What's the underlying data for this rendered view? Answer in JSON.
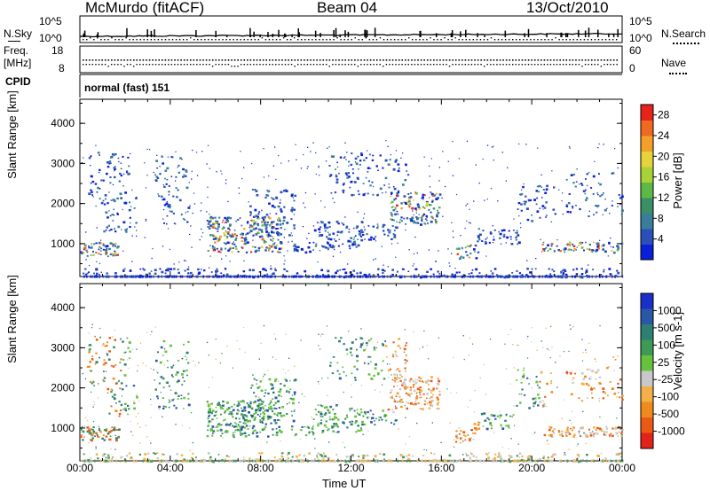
{
  "header": {
    "station": "McMurdo (fitACF)",
    "beam": "Beam 04",
    "date": "13/Oct/2010"
  },
  "top_panel": {
    "left_label": "N.Sky",
    "right_label": "N.Search",
    "left_ticks": [
      "10^5",
      "10^0"
    ],
    "right_ticks": [
      "10^5",
      "10^0"
    ]
  },
  "freq_panel": {
    "left_label_1": "Freq.",
    "left_label_2": "[MHz]",
    "right_label": "Nave",
    "left_ticks": [
      "18",
      "8"
    ],
    "right_ticks": [
      "60",
      "0"
    ]
  },
  "cpid": {
    "label": "CPID",
    "value": "normal (fast) 151"
  },
  "chart_data": [
    {
      "type": "heatmap",
      "title": "",
      "ylabel": "Slant Range [km]",
      "xlabel": "",
      "x_range_hours": [
        0,
        24
      ],
      "ylim": [
        180,
        4600
      ],
      "y_ticks": [
        1000,
        2000,
        3000,
        4000
      ],
      "colorbar": {
        "label": "Power [dB]",
        "ticks": [
          4,
          8,
          12,
          16,
          20,
          24,
          28
        ],
        "range": [
          0,
          30
        ],
        "colors": [
          "#0a1fd8",
          "#2a4fb8",
          "#3a7d9a",
          "#3a8f66",
          "#5fb845",
          "#a8d238",
          "#e6d23a",
          "#f2a02a",
          "#ef6a20",
          "#e8231c"
        ]
      }
    },
    {
      "type": "heatmap",
      "title": "",
      "ylabel": "Slant Range [km]",
      "xlabel": "Time UT",
      "x_ticks": [
        "00:00",
        "04:00",
        "08:00",
        "12:00",
        "16:00",
        "20:00",
        "00:00"
      ],
      "x_range_hours": [
        0,
        24
      ],
      "ylim": [
        180,
        4600
      ],
      "y_ticks": [
        1000,
        2000,
        3000,
        4000
      ],
      "colorbar": {
        "label": "Velocity [m s-1]",
        "ticks": [
          "1000",
          "500",
          "100",
          "25",
          "-25",
          "-100",
          "-500",
          "-1000"
        ],
        "colors": [
          "#1a2fc8",
          "#2a58a8",
          "#2e7e72",
          "#3f9a58",
          "#66c23e",
          "#c8c8c8",
          "#f2b048",
          "#f08a1e",
          "#ea5a16",
          "#e3221a"
        ]
      }
    }
  ]
}
